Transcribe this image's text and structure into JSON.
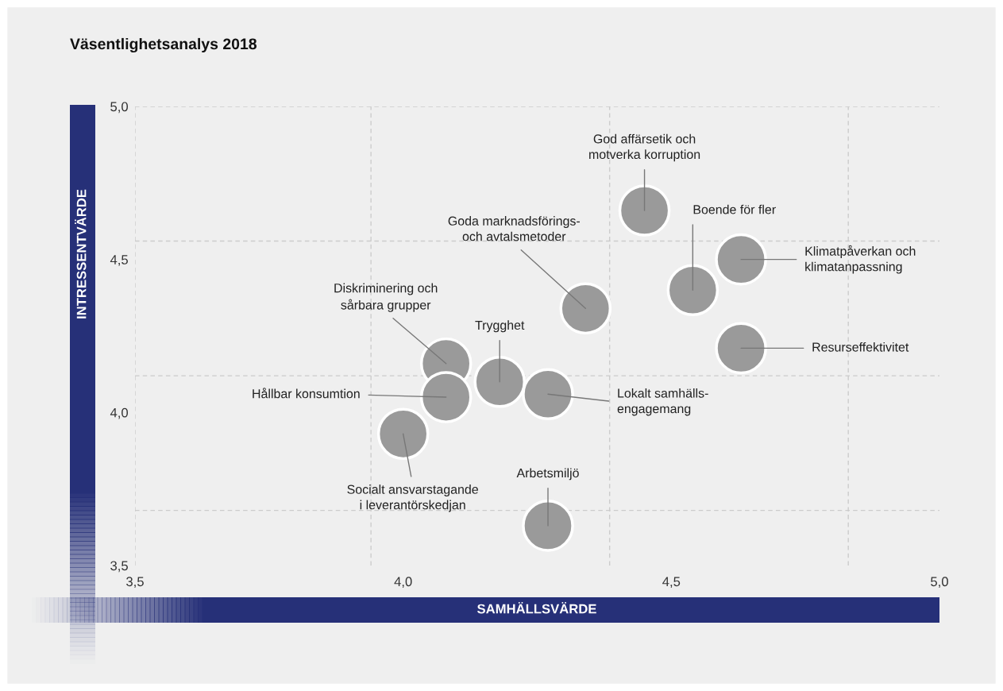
{
  "chart_data": {
    "type": "scatter",
    "title": "Väsentlighetsanalys 2018",
    "xlabel": "SAMHÄLLSVÄRDE",
    "ylabel": "INTRESSENTVÄRDE",
    "x": [
      4.45,
      4.54,
      4.63,
      4.63,
      4.34,
      4.08,
      4.18,
      4.08,
      4.27,
      4.0,
      4.27
    ],
    "series": [
      {
        "color": "#9a9a9a",
        "values": [
          4.66,
          4.4,
          4.5,
          4.21,
          4.34,
          4.16,
          4.1,
          4.05,
          4.06,
          3.93,
          3.63
        ]
      }
    ],
    "marker": "circle",
    "xlim": [
      3.5,
      5.0
    ],
    "ylim": [
      3.5,
      5.0
    ],
    "xticks": [
      {
        "value": 3.5,
        "label": "3,5"
      },
      {
        "value": 4.0,
        "label": "4,0"
      },
      {
        "value": 4.5,
        "label": "4,5"
      },
      {
        "value": 5.0,
        "label": "5,0"
      }
    ],
    "yticks": [
      {
        "value": 3.5,
        "label": "3,5"
      },
      {
        "value": 4.0,
        "label": "4,0"
      },
      {
        "value": 4.5,
        "label": "4,5"
      },
      {
        "value": 5.0,
        "label": "5,0"
      }
    ],
    "ref_lines": [
      {
        "axis": "x",
        "value": 3.5,
        "color": "#cccccc",
        "line_style": "dashed"
      },
      {
        "axis": "x",
        "value": 3.94,
        "color": "#cccccc",
        "line_style": "dashed"
      },
      {
        "axis": "x",
        "value": 4.385,
        "color": "#cccccc",
        "line_style": "dashed"
      },
      {
        "axis": "x",
        "value": 4.83,
        "color": "#cccccc",
        "line_style": "dashed"
      },
      {
        "axis": "y",
        "value": 5.0,
        "color": "#cccccc",
        "line_style": "dashed"
      },
      {
        "axis": "y",
        "value": 4.56,
        "color": "#cccccc",
        "line_style": "dashed"
      },
      {
        "axis": "y",
        "value": 4.12,
        "color": "#cccccc",
        "line_style": "dashed"
      },
      {
        "axis": "y",
        "value": 3.68,
        "color": "#cccccc",
        "line_style": "dashed"
      }
    ],
    "annotations": [
      {
        "text": "God affärsetik och\nmotverka korruption",
        "x": 4.45,
        "y": 4.66
      },
      {
        "text": "Boende för fler",
        "x": 4.54,
        "y": 4.4
      },
      {
        "text": "Klimatpåverkan och\nklimatanpassning",
        "x": 4.63,
        "y": 4.5
      },
      {
        "text": "Resurseffektivitet",
        "x": 4.63,
        "y": 4.21
      },
      {
        "text": "Goda marknadsförings-\noch avtalsmetoder",
        "x": 4.34,
        "y": 4.34
      },
      {
        "text": "Diskriminering och\nsårbara grupper",
        "x": 4.08,
        "y": 4.16
      },
      {
        "text": "Trygghet",
        "x": 4.18,
        "y": 4.1
      },
      {
        "text": "Hållbar konsumtion",
        "x": 4.08,
        "y": 4.05
      },
      {
        "text": "Lokalt samhälls-\nengagemang",
        "x": 4.27,
        "y": 4.06
      },
      {
        "text": "Socialt ansvarstagande\ni leverantörskedjan",
        "x": 4.0,
        "y": 3.93
      },
      {
        "text": "Arbetsmiljö",
        "x": 4.27,
        "y": 3.63
      }
    ]
  }
}
